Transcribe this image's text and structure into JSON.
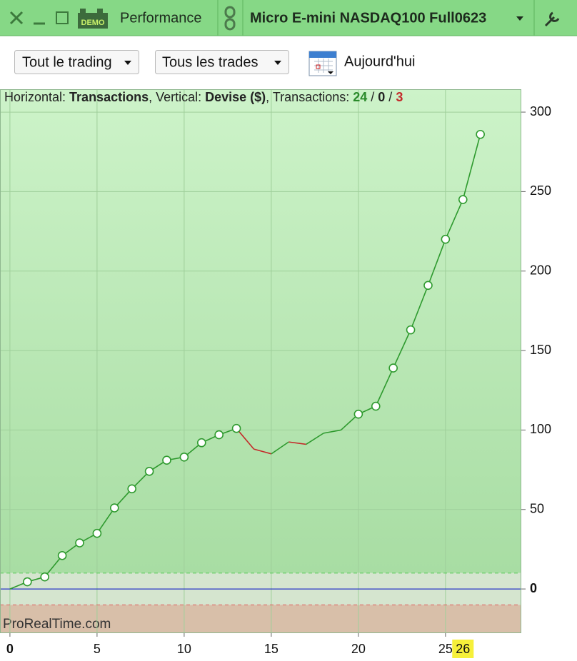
{
  "toolbar": {
    "demo_badge": "DEMO",
    "panel": "Performance",
    "instrument": "Micro E-mini NASDAQ100 Full0623"
  },
  "filters": {
    "scope": "Tout le trading",
    "trades": "Tous les trades",
    "period": "Aujourd'hui"
  },
  "chart_data": {
    "type": "line",
    "header": {
      "horizontal_label": "Horizontal: ",
      "horizontal_value": "Transactions",
      "vertical_label": ", Vertical: ",
      "vertical_value": "Devise ($)",
      "count_label": ", Transactions: ",
      "separator": " / ",
      "winners": 24,
      "neutral": 0,
      "losers": 3
    },
    "x": [
      0,
      1,
      2,
      3,
      4,
      5,
      6,
      7,
      8,
      9,
      10,
      11,
      12,
      13,
      14,
      15,
      16,
      17,
      18,
      19,
      20,
      21,
      22,
      23,
      24,
      25,
      26,
      27
    ],
    "values": [
      0,
      4.5,
      7.6,
      21,
      29,
      35,
      51,
      63,
      74,
      81,
      83,
      92,
      97,
      101,
      88,
      85,
      92.5,
      91,
      98,
      100,
      110,
      115,
      139,
      163,
      191,
      220,
      245,
      286
    ],
    "color": "#2e9a2e",
    "loss_color": "#c42a2a",
    "zero_line_color": "#2a36c8",
    "upper_threshold": 10,
    "lower_threshold": -10,
    "xlim": [
      -0.57,
      29.35
    ],
    "ylim": [
      -27.8,
      314.4
    ],
    "xticks": [
      0,
      5,
      10,
      15,
      20,
      25
    ],
    "yticks": [
      0,
      50,
      100,
      150,
      200,
      250,
      300
    ],
    "highlight_x": 26,
    "grid": true,
    "watermark": "ProRealTime.com"
  }
}
